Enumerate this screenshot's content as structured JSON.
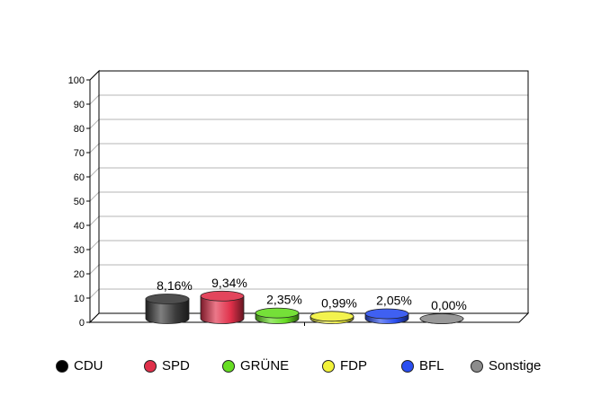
{
  "chart_data": {
    "type": "bar",
    "style": "3d-cylinder",
    "categories": [
      "CDU",
      "SPD",
      "GRÜNE",
      "FDP",
      "BFL",
      "Sonstige"
    ],
    "values": [
      8.16,
      9.34,
      2.35,
      0.99,
      2.05,
      0.0
    ],
    "data_labels": [
      "8,16%",
      "9,34%",
      "2,35%",
      "0,99%",
      "2,05%",
      "0,00%"
    ],
    "colors": [
      "#3a3a3a",
      "#e0304a",
      "#66dd22",
      "#f2f23a",
      "#2a4ef0",
      "#8c8c8c"
    ],
    "ylim": [
      0,
      100
    ],
    "yticks": [
      0,
      10,
      20,
      30,
      40,
      50,
      60,
      70,
      80,
      90,
      100
    ],
    "grid": true,
    "legend_position": "bottom",
    "title": "",
    "xlabel": "",
    "ylabel": ""
  }
}
